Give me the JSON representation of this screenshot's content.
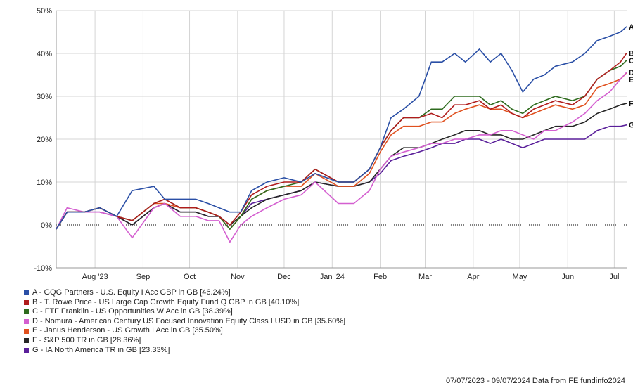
{
  "chart_data": {
    "type": "line",
    "ylim": [
      -10,
      50
    ],
    "yticks": [
      -10,
      0,
      10,
      20,
      30,
      40,
      50
    ],
    "ytick_labels": [
      "-10%",
      "0%",
      "10%",
      "20%",
      "30%",
      "40%",
      "50%"
    ],
    "xlim": [
      "2023-07-07",
      "2024-07-09"
    ],
    "xticks": [
      {
        "date": "2023-08-01",
        "label": "Aug '23"
      },
      {
        "date": "2023-09-01",
        "label": "Sep"
      },
      {
        "date": "2023-10-01",
        "label": "Oct"
      },
      {
        "date": "2023-11-01",
        "label": "Nov"
      },
      {
        "date": "2023-12-01",
        "label": "Dec"
      },
      {
        "date": "2024-01-01",
        "label": "Jan '24"
      },
      {
        "date": "2024-02-01",
        "label": "Feb"
      },
      {
        "date": "2024-03-01",
        "label": "Mar"
      },
      {
        "date": "2024-04-01",
        "label": "Apr"
      },
      {
        "date": "2024-05-01",
        "label": "May"
      },
      {
        "date": "2024-06-01",
        "label": "Jun"
      },
      {
        "date": "2024-07-01",
        "label": "Jul"
      }
    ],
    "grid": true,
    "series": [
      {
        "code": "A",
        "name": "A - GQG Partners - U.S. Equity I Acc GBP in GB [46.24%]",
        "color": "#2a4fa6",
        "x": [
          "2023-07-07",
          "2023-07-14",
          "2023-07-25",
          "2023-08-04",
          "2023-08-15",
          "2023-08-25",
          "2023-09-08",
          "2023-09-15",
          "2023-09-25",
          "2023-10-05",
          "2023-10-13",
          "2023-10-20",
          "2023-10-27",
          "2023-11-03",
          "2023-11-10",
          "2023-11-20",
          "2023-12-01",
          "2023-12-12",
          "2023-12-21",
          "2024-01-05",
          "2024-01-15",
          "2024-01-25",
          "2024-02-01",
          "2024-02-08",
          "2024-02-16",
          "2024-02-26",
          "2024-03-05",
          "2024-03-12",
          "2024-03-20",
          "2024-03-27",
          "2024-04-05",
          "2024-04-12",
          "2024-04-19",
          "2024-04-26",
          "2024-05-03",
          "2024-05-10",
          "2024-05-17",
          "2024-05-24",
          "2024-06-04",
          "2024-06-12",
          "2024-06-20",
          "2024-06-28",
          "2024-07-05",
          "2024-07-09"
        ],
        "y": [
          -1,
          3,
          3,
          4,
          2,
          8,
          9,
          6,
          6,
          6,
          5,
          4,
          3,
          3,
          8,
          10,
          11,
          10,
          12,
          10,
          10,
          13,
          18,
          25,
          27,
          30,
          38,
          38,
          40,
          38,
          41,
          38,
          40,
          36,
          31,
          34,
          35,
          37,
          38,
          40,
          43,
          44,
          45,
          46.24
        ]
      },
      {
        "code": "B",
        "name": "B - T. Rowe Price - US Large Cap Growth Equity Fund Q GBP in GB [40.10%]",
        "color": "#b01c1c",
        "x": [
          "2023-07-07",
          "2023-07-14",
          "2023-07-25",
          "2023-08-04",
          "2023-08-15",
          "2023-08-25",
          "2023-09-08",
          "2023-09-15",
          "2023-09-25",
          "2023-10-05",
          "2023-10-13",
          "2023-10-20",
          "2023-10-27",
          "2023-11-03",
          "2023-11-10",
          "2023-11-20",
          "2023-12-01",
          "2023-12-12",
          "2023-12-21",
          "2024-01-05",
          "2024-01-15",
          "2024-01-25",
          "2024-02-01",
          "2024-02-08",
          "2024-02-16",
          "2024-02-26",
          "2024-03-05",
          "2024-03-12",
          "2024-03-20",
          "2024-03-27",
          "2024-04-05",
          "2024-04-12",
          "2024-04-19",
          "2024-04-26",
          "2024-05-03",
          "2024-05-10",
          "2024-05-17",
          "2024-05-24",
          "2024-06-04",
          "2024-06-12",
          "2024-06-20",
          "2024-06-28",
          "2024-07-05",
          "2024-07-09"
        ],
        "y": [
          -1,
          3,
          3,
          4,
          2,
          1,
          5,
          6,
          4,
          4,
          3,
          2,
          0,
          3,
          7,
          9,
          10,
          10,
          13,
          10,
          10,
          13,
          18,
          22,
          25,
          25,
          26,
          25,
          28,
          28,
          29,
          27,
          28,
          26,
          25,
          27,
          28,
          29,
          28,
          30,
          34,
          36,
          38,
          40.1
        ]
      },
      {
        "code": "C",
        "name": "C - FTF Franklin - US Opportunities W Acc in GB [38.39%]",
        "color": "#2e6b1e",
        "x": [
          "2023-07-07",
          "2023-07-14",
          "2023-07-25",
          "2023-08-04",
          "2023-08-15",
          "2023-08-25",
          "2023-09-08",
          "2023-09-15",
          "2023-09-25",
          "2023-10-05",
          "2023-10-13",
          "2023-10-20",
          "2023-10-27",
          "2023-11-03",
          "2023-11-10",
          "2023-11-20",
          "2023-12-01",
          "2023-12-12",
          "2023-12-21",
          "2024-01-05",
          "2024-01-15",
          "2024-01-25",
          "2024-02-01",
          "2024-02-08",
          "2024-02-16",
          "2024-02-26",
          "2024-03-05",
          "2024-03-12",
          "2024-03-20",
          "2024-03-27",
          "2024-04-05",
          "2024-04-12",
          "2024-04-19",
          "2024-04-26",
          "2024-05-03",
          "2024-05-10",
          "2024-05-17",
          "2024-05-24",
          "2024-06-04",
          "2024-06-12",
          "2024-06-20",
          "2024-06-28",
          "2024-07-05",
          "2024-07-09"
        ],
        "y": [
          -1,
          3,
          3,
          4,
          2,
          1,
          5,
          6,
          4,
          4,
          3,
          2,
          -1,
          2,
          6,
          8,
          9,
          10,
          13,
          10,
          10,
          13,
          18,
          22,
          25,
          25,
          27,
          27,
          30,
          30,
          30,
          28,
          29,
          27,
          26,
          28,
          29,
          30,
          29,
          30,
          34,
          36,
          37,
          38.39
        ]
      },
      {
        "code": "D",
        "name": "D - Nomura - American Century US Focused Innovation Equity Class I USD in GB [35.60%]",
        "color": "#d45fd0",
        "x": [
          "2023-07-07",
          "2023-07-14",
          "2023-07-25",
          "2023-08-04",
          "2023-08-15",
          "2023-08-25",
          "2023-09-08",
          "2023-09-15",
          "2023-09-25",
          "2023-10-05",
          "2023-10-13",
          "2023-10-20",
          "2023-10-27",
          "2023-11-03",
          "2023-11-10",
          "2023-11-20",
          "2023-12-01",
          "2023-12-12",
          "2023-12-21",
          "2024-01-05",
          "2024-01-15",
          "2024-01-25",
          "2024-02-01",
          "2024-02-08",
          "2024-02-16",
          "2024-02-26",
          "2024-03-05",
          "2024-03-12",
          "2024-03-20",
          "2024-03-27",
          "2024-04-05",
          "2024-04-12",
          "2024-04-19",
          "2024-04-26",
          "2024-05-03",
          "2024-05-10",
          "2024-05-17",
          "2024-05-24",
          "2024-06-04",
          "2024-06-12",
          "2024-06-20",
          "2024-06-28",
          "2024-07-05",
          "2024-07-09"
        ],
        "y": [
          -1,
          4,
          3,
          3,
          2,
          -3,
          4,
          5,
          2,
          2,
          1,
          1,
          -4,
          0,
          2,
          4,
          6,
          7,
          10,
          5,
          5,
          8,
          13,
          16,
          17,
          18,
          19,
          19,
          20,
          20,
          21,
          21,
          22,
          22,
          21,
          20,
          22,
          22,
          24,
          26,
          29,
          31,
          34,
          35.6
        ]
      },
      {
        "code": "E",
        "name": "E - Janus Henderson - US Growth I Acc in GB [35.50%]",
        "color": "#e0501e",
        "x": [
          "2023-07-07",
          "2023-07-14",
          "2023-07-25",
          "2023-08-04",
          "2023-08-15",
          "2023-08-25",
          "2023-09-08",
          "2023-09-15",
          "2023-09-25",
          "2023-10-05",
          "2023-10-13",
          "2023-10-20",
          "2023-10-27",
          "2023-11-03",
          "2023-11-10",
          "2023-11-20",
          "2023-12-01",
          "2023-12-12",
          "2023-12-21",
          "2024-01-05",
          "2024-01-15",
          "2024-01-25",
          "2024-02-01",
          "2024-02-08",
          "2024-02-16",
          "2024-02-26",
          "2024-03-05",
          "2024-03-12",
          "2024-03-20",
          "2024-03-27",
          "2024-04-05",
          "2024-04-12",
          "2024-04-19",
          "2024-04-26",
          "2024-05-03",
          "2024-05-10",
          "2024-05-17",
          "2024-05-24",
          "2024-06-04",
          "2024-06-12",
          "2024-06-20",
          "2024-06-28",
          "2024-07-05",
          "2024-07-09"
        ],
        "y": [
          -1,
          3,
          3,
          4,
          2,
          1,
          5,
          5,
          4,
          4,
          3,
          2,
          -1,
          2,
          6,
          8,
          9,
          9,
          12,
          9,
          9,
          12,
          17,
          21,
          23,
          23,
          24,
          24,
          26,
          27,
          28,
          27,
          27,
          26,
          25,
          26,
          27,
          28,
          27,
          28,
          32,
          33,
          34,
          35.5
        ]
      },
      {
        "code": "F",
        "name": "F - S&P 500 TR in GB [28.36%]",
        "color": "#262626",
        "x": [
          "2023-07-07",
          "2023-07-14",
          "2023-07-25",
          "2023-08-04",
          "2023-08-15",
          "2023-08-25",
          "2023-09-08",
          "2023-09-15",
          "2023-09-25",
          "2023-10-05",
          "2023-10-13",
          "2023-10-20",
          "2023-10-27",
          "2023-11-03",
          "2023-11-10",
          "2023-11-20",
          "2023-12-01",
          "2023-12-12",
          "2023-12-21",
          "2024-01-05",
          "2024-01-15",
          "2024-01-25",
          "2024-02-01",
          "2024-02-08",
          "2024-02-16",
          "2024-02-26",
          "2024-03-05",
          "2024-03-12",
          "2024-03-20",
          "2024-03-27",
          "2024-04-05",
          "2024-04-12",
          "2024-04-19",
          "2024-04-26",
          "2024-05-03",
          "2024-05-10",
          "2024-05-17",
          "2024-05-24",
          "2024-06-04",
          "2024-06-12",
          "2024-06-20",
          "2024-06-28",
          "2024-07-05",
          "2024-07-09"
        ],
        "y": [
          -1,
          3,
          3,
          4,
          2,
          0,
          4,
          5,
          3,
          3,
          2,
          2,
          0,
          2,
          4,
          6,
          7,
          8,
          10,
          9,
          9,
          10,
          13,
          16,
          18,
          18,
          19,
          20,
          21,
          22,
          22,
          21,
          21,
          20,
          20,
          21,
          22,
          23,
          23,
          24,
          26,
          27,
          28,
          28.36
        ]
      },
      {
        "code": "G",
        "name": "G - IA North America TR in GB [23.33%]",
        "color": "#5a1f9a",
        "x": [
          "2023-07-07",
          "2023-07-14",
          "2023-07-25",
          "2023-08-04",
          "2023-08-15",
          "2023-08-25",
          "2023-09-08",
          "2023-09-15",
          "2023-09-25",
          "2023-10-05",
          "2023-10-13",
          "2023-10-20",
          "2023-10-27",
          "2023-11-03",
          "2023-11-10",
          "2023-11-20",
          "2023-12-01",
          "2023-12-12",
          "2023-12-21",
          "2024-01-05",
          "2024-01-15",
          "2024-01-25",
          "2024-02-01",
          "2024-02-08",
          "2024-02-16",
          "2024-02-26",
          "2024-03-05",
          "2024-03-12",
          "2024-03-20",
          "2024-03-27",
          "2024-04-05",
          "2024-04-12",
          "2024-04-19",
          "2024-04-26",
          "2024-05-03",
          "2024-05-10",
          "2024-05-17",
          "2024-05-24",
          "2024-06-04",
          "2024-06-12",
          "2024-06-20",
          "2024-06-28",
          "2024-07-05",
          "2024-07-09"
        ],
        "y": [
          -1,
          3,
          3,
          3,
          2,
          0,
          4,
          5,
          3,
          3,
          2,
          2,
          0,
          2,
          5,
          6,
          7,
          8,
          10,
          9,
          9,
          10,
          12,
          15,
          16,
          17,
          18,
          19,
          19,
          20,
          20,
          19,
          20,
          19,
          18,
          19,
          20,
          20,
          20,
          20,
          22,
          23,
          23,
          23.33
        ]
      }
    ]
  },
  "footer": {
    "text": "07/07/2023 - 09/07/2024 Data from FE fundinfo2024"
  }
}
